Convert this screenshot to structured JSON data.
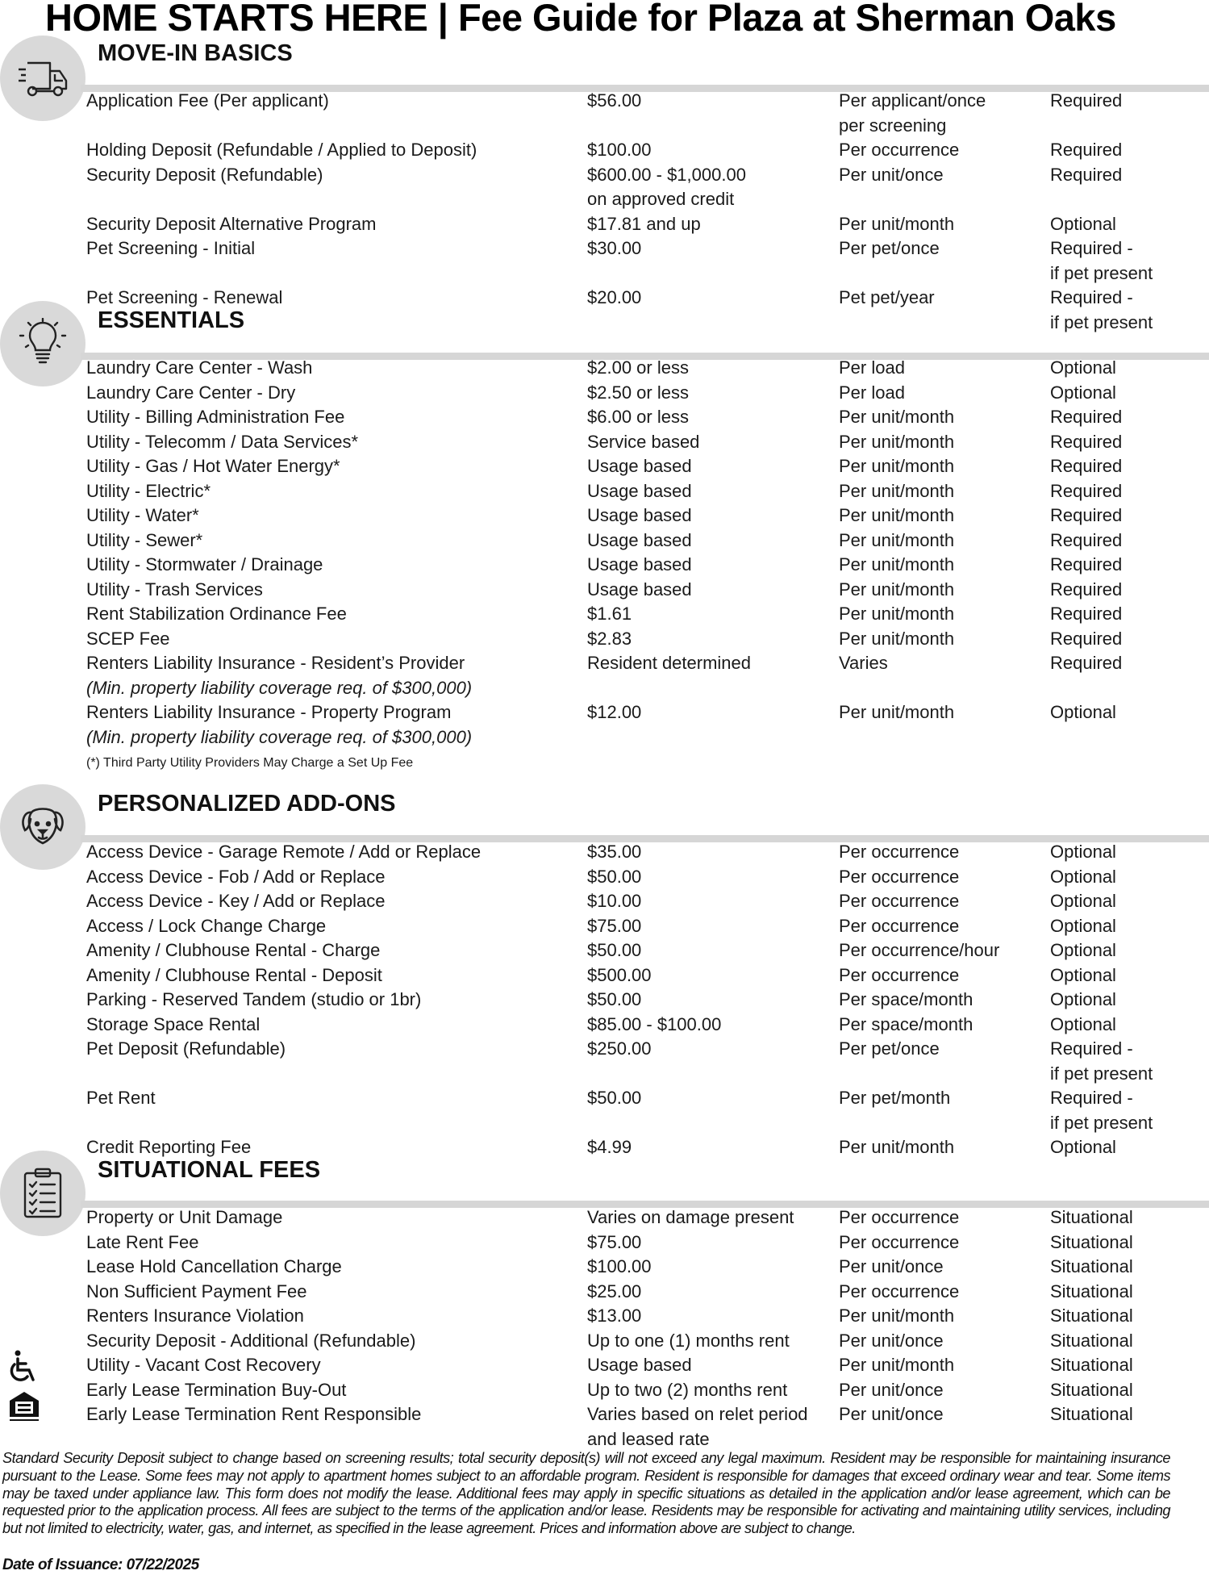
{
  "title": "HOME STARTS HERE | Fee Guide for Plaza at Sherman Oaks",
  "sections": [
    {
      "heading": "MOVE-IN BASICS",
      "icon": "moving-truck-icon",
      "rows": [
        {
          "name": "Application Fee (Per applicant)",
          "amount": "$56.00",
          "frequency": "Per applicant/once\nper screening",
          "status": "Required"
        },
        {
          "name": "Holding Deposit (Refundable / Applied to Deposit)",
          "amount": "$100.00",
          "frequency": "Per occurrence",
          "status": "Required"
        },
        {
          "name": "Security Deposit (Refundable)",
          "amount": "$600.00 - $1,000.00\non approved credit",
          "frequency": "Per unit/once",
          "status": "Required"
        },
        {
          "name": "Security Deposit Alternative Program",
          "amount": "$17.81 and up",
          "frequency": "Per unit/month",
          "status": "Optional"
        },
        {
          "name": "Pet Screening - Initial",
          "amount": "$30.00",
          "frequency": "Per pet/once",
          "status": "Required -\nif pet present"
        },
        {
          "name": "Pet Screening - Renewal",
          "amount": "$20.00",
          "frequency": "Pet pet/year",
          "status": "Required -\nif pet present"
        }
      ]
    },
    {
      "heading": "ESSENTIALS",
      "icon": "lightbulb-icon",
      "rows": [
        {
          "name": "Laundry Care Center - Wash",
          "amount": "$2.00 or less",
          "frequency": "Per load",
          "status": "Optional"
        },
        {
          "name": "Laundry Care Center - Dry",
          "amount": "$2.50 or less",
          "frequency": "Per load",
          "status": "Optional"
        },
        {
          "name": "Utility - Billing Administration Fee",
          "amount": "$6.00 or less",
          "frequency": "Per unit/month",
          "status": "Required"
        },
        {
          "name": "Utility - Telecomm / Data Services*",
          "amount": "Service based",
          "frequency": "Per unit/month",
          "status": "Required"
        },
        {
          "name": "Utility - Gas / Hot Water Energy*",
          "amount": "Usage based",
          "frequency": "Per unit/month",
          "status": "Required"
        },
        {
          "name": "Utility - Electric*",
          "amount": "Usage based",
          "frequency": "Per unit/month",
          "status": "Required"
        },
        {
          "name": "Utility - Water*",
          "amount": "Usage based",
          "frequency": "Per unit/month",
          "status": "Required"
        },
        {
          "name": "Utility - Sewer*",
          "amount": "Usage based",
          "frequency": "Per unit/month",
          "status": "Required"
        },
        {
          "name": "Utility - Stormwater / Drainage",
          "amount": "Usage based",
          "frequency": "Per unit/month",
          "status": "Required"
        },
        {
          "name": "Utility - Trash Services",
          "amount": "Usage based",
          "frequency": "Per unit/month",
          "status": "Required"
        },
        {
          "name": "Rent Stabilization Ordinance Fee",
          "amount": "$1.61",
          "frequency": "Per unit/month",
          "status": "Required"
        },
        {
          "name": "SCEP Fee",
          "amount": "$2.83",
          "frequency": "Per unit/month",
          "status": "Required"
        },
        {
          "name": "Renters Liability Insurance - Resident’s Provider",
          "subnote": "(Min. property liability coverage req. of $300,000)",
          "amount": "Resident determined",
          "frequency": "Varies",
          "status": "Required"
        },
        {
          "name": "Renters Liability Insurance - Property Program",
          "subnote": "(Min. property liability coverage req. of $300,000)",
          "amount": "$12.00",
          "frequency": "Per unit/month",
          "status": "Optional"
        }
      ],
      "footnote": "(*) Third Party Utility Providers May Charge a Set Up Fee"
    },
    {
      "heading": "PERSONALIZED ADD-ONS",
      "icon": "dog-icon",
      "rows": [
        {
          "name": "Access Device - Garage Remote / Add or Replace",
          "amount": "$35.00",
          "frequency": "Per occurrence",
          "status": "Optional"
        },
        {
          "name": "Access Device - Fob / Add or Replace",
          "amount": "$50.00",
          "frequency": "Per occurrence",
          "status": "Optional"
        },
        {
          "name": "Access Device - Key / Add or Replace",
          "amount": "$10.00",
          "frequency": "Per occurrence",
          "status": "Optional"
        },
        {
          "name": "Access / Lock Change Charge",
          "amount": "$75.00",
          "frequency": "Per occurrence",
          "status": "Optional"
        },
        {
          "name": "Amenity / Clubhouse Rental - Charge",
          "amount": "$50.00",
          "frequency": "Per occurrence/hour",
          "status": "Optional"
        },
        {
          "name": "Amenity / Clubhouse Rental - Deposit",
          "amount": "$500.00",
          "frequency": "Per occurrence",
          "status": "Optional"
        },
        {
          "name": "Parking - Reserved Tandem (studio or 1br)",
          "amount": "$50.00",
          "frequency": "Per space/month",
          "status": "Optional"
        },
        {
          "name": "Storage Space Rental",
          "amount": "$85.00 - $100.00",
          "frequency": "Per space/month",
          "status": "Optional"
        },
        {
          "name": "Pet Deposit (Refundable)",
          "amount": "$250.00",
          "frequency": "Per pet/once",
          "status": "Required -\nif pet present"
        },
        {
          "name": "Pet Rent",
          "amount": "$50.00",
          "frequency": "Per pet/month",
          "status": "Required -\nif pet present"
        },
        {
          "name": "Credit Reporting Fee",
          "amount": "$4.99",
          "frequency": "Per unit/month",
          "status": "Optional"
        }
      ]
    },
    {
      "heading": "SITUATIONAL FEES",
      "icon": "clipboard-checklist-icon",
      "rows": [
        {
          "name": "Property or Unit Damage",
          "amount": "Varies on damage present",
          "frequency": "Per occurrence",
          "status": "Situational"
        },
        {
          "name": "Late Rent Fee",
          "amount": "$75.00",
          "frequency": "Per occurrence",
          "status": "Situational"
        },
        {
          "name": "Lease Hold Cancellation Charge",
          "amount": "$100.00",
          "frequency": "Per unit/once",
          "status": "Situational"
        },
        {
          "name": "Non Sufficient Payment Fee",
          "amount": "$25.00",
          "frequency": "Per occurrence",
          "status": "Situational"
        },
        {
          "name": "Renters Insurance Violation",
          "amount": "$13.00",
          "frequency": "Per unit/month",
          "status": "Situational"
        },
        {
          "name": "Security Deposit - Additional (Refundable)",
          "amount": "Up to one (1) months rent",
          "frequency": "Per unit/once",
          "status": "Situational"
        },
        {
          "name": "Utility - Vacant Cost Recovery",
          "amount": "Usage based",
          "frequency": "Per unit/month",
          "status": "Situational"
        },
        {
          "name": "Early Lease Termination Buy-Out",
          "amount": "Up to two (2) months rent",
          "frequency": "Per unit/once",
          "status": "Situational"
        },
        {
          "name": "Early Lease Termination Rent Responsible",
          "amount": "Varies based on relet period\nand leased rate",
          "frequency": "Per unit/once",
          "status": "Situational"
        }
      ]
    }
  ],
  "footer": {
    "disclaimer": "Standard Security Deposit subject to change based on screening results; total security deposit(s) will not exceed any legal maximum. Resident may be responsible for maintaining insurance pursuant to the Lease. Some fees may not apply to apartment homes subject to an affordable program. Resident is responsible for damages that exceed ordinary wear and tear. Some items may be taxed under appliance law. This form does not modify the lease. Additional fees may apply in specific situations as detailed in the application and/or lease agreement, which can be requested prior to the application process. All fees are subject to the terms of the application and/or lease. Residents may be responsible for activating and maintaining utility services, including but not limited to electricity, water, gas, and internet, as specified in the lease agreement. Prices and information above are subject to change.",
    "issuance": "Date of Issuance: 07/22/2025",
    "icons": [
      "accessibility-icon",
      "equal-housing-opportunity-icon"
    ]
  }
}
